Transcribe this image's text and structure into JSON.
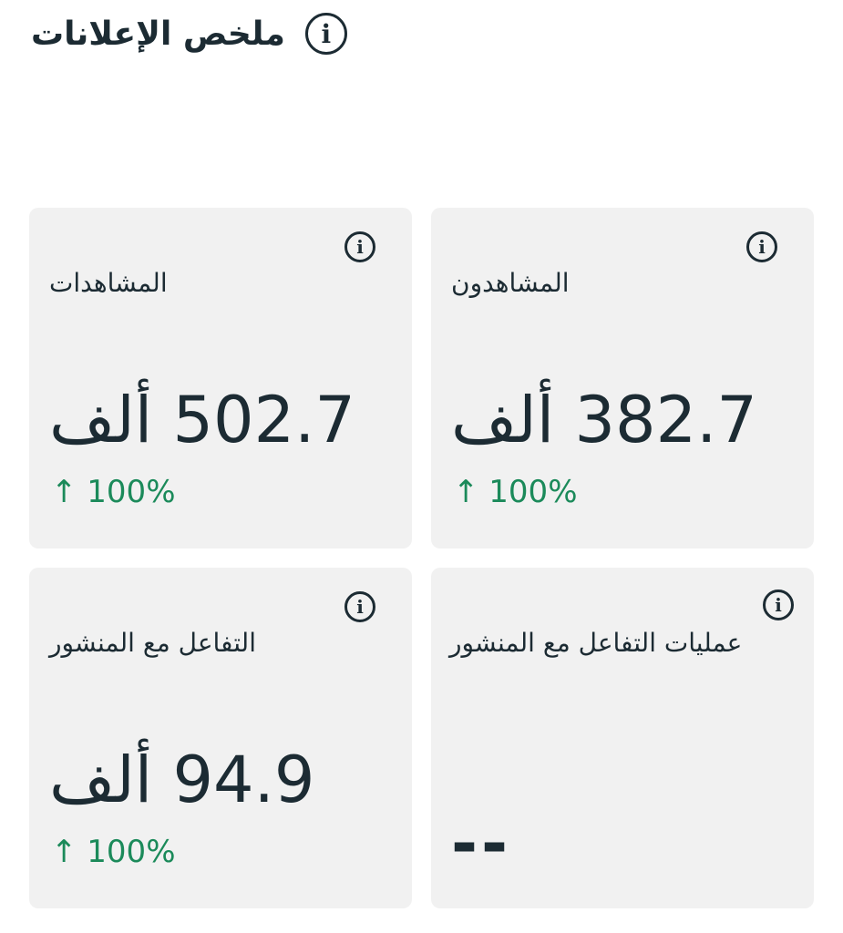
{
  "header": {
    "title": "ملخص الإعلانات",
    "icon": "info-icon"
  },
  "colors": {
    "card_bg": "#f1f1f1",
    "text": "#1c2b33",
    "positive": "#1b8a5a"
  },
  "cards": [
    {
      "label": "المشاهدون",
      "value": "382.7 ألف",
      "change": "↑ 100%"
    },
    {
      "label": "المشاهدات",
      "value": "502.7 ألف",
      "change": "↑ 100%"
    },
    {
      "label": "عمليات  التفاعل مع المنشور",
      "value": "--"
    },
    {
      "label": "التفاعل مع المنشور",
      "value": "94.9 ألف",
      "change": "↑ 100%"
    }
  ]
}
